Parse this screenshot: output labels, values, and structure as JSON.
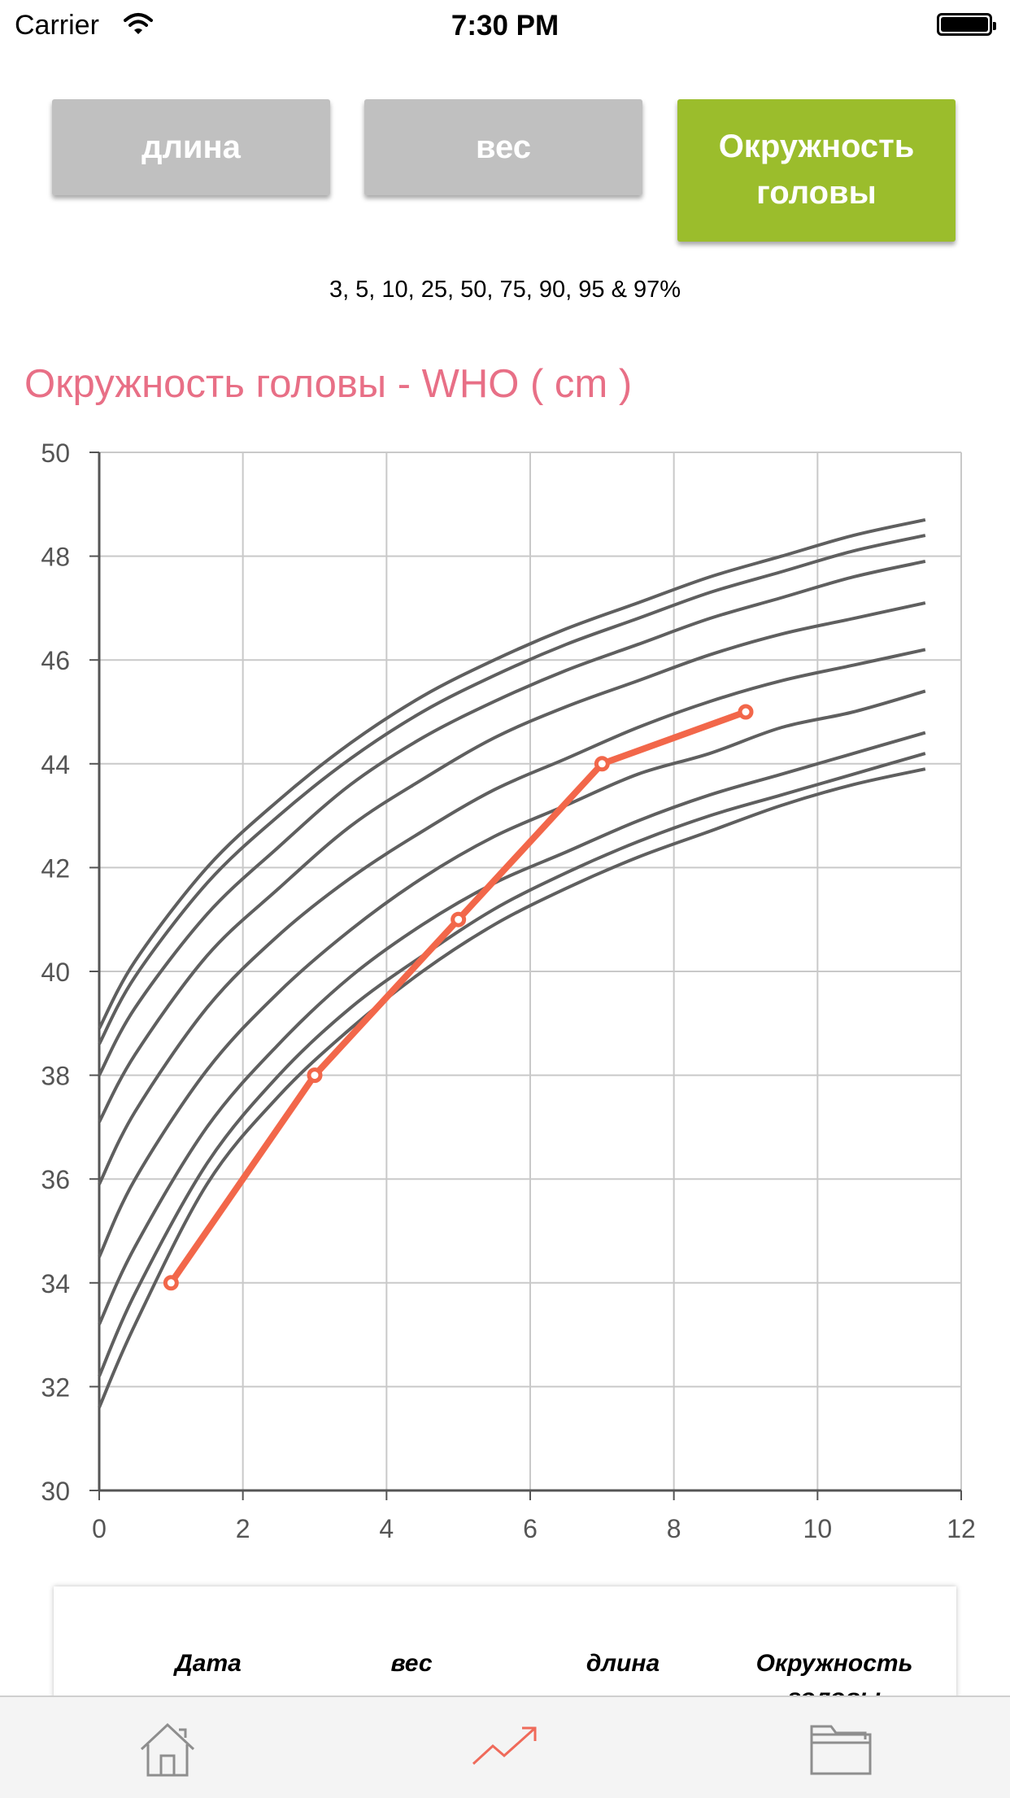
{
  "status_bar": {
    "carrier": "Carrier",
    "time": "7:30 PM"
  },
  "tabs": [
    {
      "label": "длина",
      "active": false
    },
    {
      "label": "вес",
      "active": false
    },
    {
      "label": "Окружность головы",
      "active": true
    }
  ],
  "percentiles_label": "3, 5, 10, 25, 50, 75, 90, 95 & 97%",
  "chart_title": {
    "main": "Окружность головы",
    "suffix": " - WHO ( cm )"
  },
  "table_headers": [
    "Дата",
    "вес",
    "длина",
    "Окружность головы"
  ],
  "tabbar": {
    "icons": [
      "home-icon",
      "chart-trend-icon",
      "folder-icon"
    ],
    "active": "chart-trend-icon"
  },
  "colors": {
    "accent_green": "#9bbd2c",
    "inactive_gray": "#c0c0c0",
    "title_pink": "#e86f86",
    "child_line": "#f2674a",
    "percentile_line": "#5f5f5f"
  },
  "chart_data": {
    "type": "line",
    "title": "Окружность головы - WHO ( cm )",
    "xlim": [
      0,
      12
    ],
    "ylim": [
      30,
      50
    ],
    "x_ticks": [
      "0",
      "2",
      "4",
      "6",
      "8",
      "10",
      "12"
    ],
    "y_ticks": [
      "30",
      "32",
      "34",
      "36",
      "38",
      "40",
      "42",
      "44",
      "46",
      "48",
      "50"
    ],
    "grid": true,
    "percentile_x": [
      0,
      0.5,
      1.5,
      2.5,
      3.5,
      4.5,
      5.5,
      6.5,
      7.5,
      8.5,
      9.5,
      10.5,
      11.5
    ],
    "percentile_series": [
      {
        "name": "97%",
        "values": [
          38.9,
          40.2,
          42.0,
          43.3,
          44.4,
          45.3,
          46.0,
          46.6,
          47.1,
          47.6,
          48.0,
          48.4,
          48.7
        ]
      },
      {
        "name": "95%",
        "values": [
          38.6,
          39.9,
          41.7,
          43.0,
          44.1,
          45.0,
          45.7,
          46.3,
          46.8,
          47.3,
          47.7,
          48.1,
          48.4
        ]
      },
      {
        "name": "90%",
        "values": [
          38.0,
          39.3,
          41.1,
          42.4,
          43.6,
          44.5,
          45.2,
          45.8,
          46.3,
          46.8,
          47.2,
          47.6,
          47.9
        ]
      },
      {
        "name": "75%",
        "values": [
          37.1,
          38.4,
          40.3,
          41.6,
          42.8,
          43.7,
          44.5,
          45.1,
          45.6,
          46.1,
          46.5,
          46.8,
          47.1
        ]
      },
      {
        "name": "50%",
        "values": [
          35.9,
          37.3,
          39.3,
          40.7,
          41.8,
          42.7,
          43.5,
          44.1,
          44.7,
          45.2,
          45.6,
          45.9,
          46.2
        ]
      },
      {
        "name": "25%",
        "values": [
          34.5,
          36.0,
          38.1,
          39.6,
          40.8,
          41.8,
          42.6,
          43.2,
          43.8,
          44.2,
          44.7,
          45.0,
          45.4
        ]
      },
      {
        "name": "10%",
        "values": [
          33.2,
          34.7,
          37.0,
          38.6,
          39.9,
          40.9,
          41.7,
          42.3,
          42.9,
          43.4,
          43.8,
          44.2,
          44.6
        ]
      },
      {
        "name": "5%",
        "values": [
          32.2,
          33.8,
          36.3,
          38.0,
          39.3,
          40.3,
          41.2,
          41.9,
          42.5,
          43.0,
          43.4,
          43.8,
          44.2
        ]
      },
      {
        "name": "3%",
        "values": [
          31.6,
          33.2,
          35.9,
          37.6,
          38.9,
          40.0,
          40.9,
          41.6,
          42.2,
          42.7,
          43.2,
          43.6,
          43.9
        ]
      }
    ],
    "child_series": {
      "x": [
        1,
        3,
        5,
        7,
        9
      ],
      "values": [
        34,
        38,
        41,
        44,
        45
      ]
    }
  }
}
